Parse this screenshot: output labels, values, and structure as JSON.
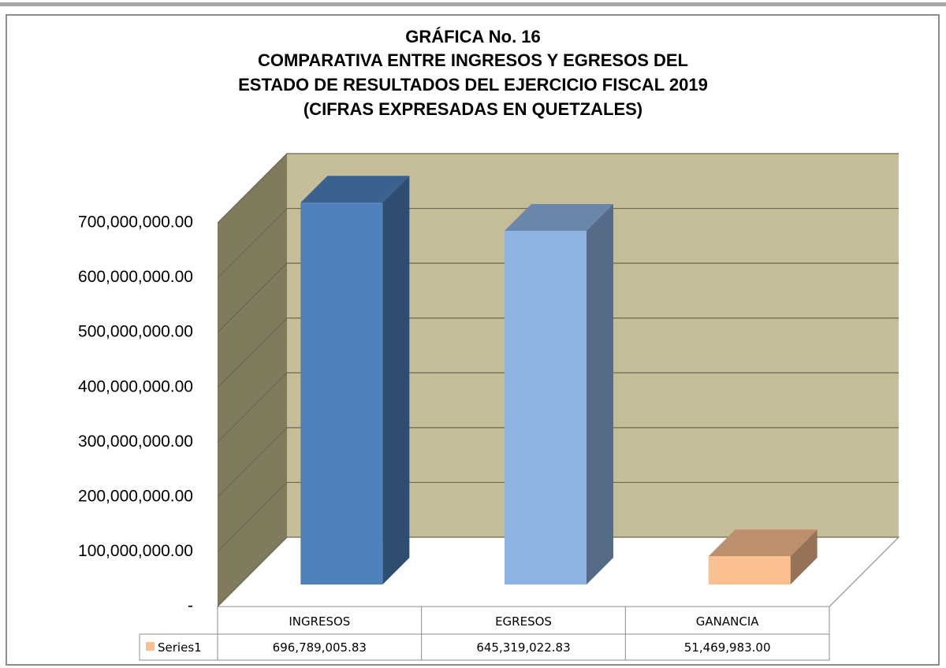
{
  "chart_data": {
    "type": "bar",
    "title": [
      "GRÁFICA No. 16",
      "COMPARATIVA ENTRE INGRESOS Y EGRESOS DEL",
      "ESTADO DE RESULTADOS DEL EJERCICIO FISCAL 2019",
      "(CIFRAS EXPRESADAS EN QUETZALES)"
    ],
    "categories": [
      "INGRESOS",
      "EGRESOS",
      "GANANCIA"
    ],
    "series": [
      {
        "name": "Series1",
        "color": "#fac090",
        "values": [
          696789005.83,
          645319022.83,
          51469983.0
        ],
        "value_labels": [
          "696,789,005.83",
          "645,319,022.83",
          "51,469,983.00"
        ]
      }
    ],
    "colors": [
      "#4f81bd",
      "#8db3e2",
      "#fac090"
    ],
    "ylim": [
      0,
      700000000
    ],
    "yticks": [
      {
        "value": 0,
        "label": "-"
      },
      {
        "value": 100000000,
        "label": "100,000,000.00"
      },
      {
        "value": 200000000,
        "label": "200,000,000.00"
      },
      {
        "value": 300000000,
        "label": "300,000,000.00"
      },
      {
        "value": 400000000,
        "label": "400,000,000.00"
      },
      {
        "value": 500000000,
        "label": "500,000,000.00"
      },
      {
        "value": 600000000,
        "label": "600,000,000.00"
      },
      {
        "value": 700000000,
        "label": "700,000,000.00"
      }
    ],
    "grid": true
  }
}
